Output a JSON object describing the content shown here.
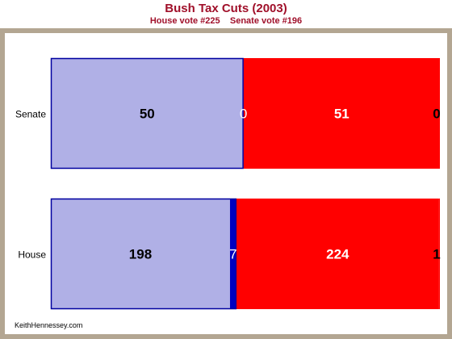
{
  "title": "Bush Tax Cuts (2003)",
  "subtitle": "House vote #225    Senate vote #196",
  "credit": "KeithHennessey.com",
  "colors": {
    "frame": "#b3a692",
    "title": "#a0102a",
    "dem_yes": "#b0b0e6",
    "dem_no": "#0000c0",
    "rep_yes": "#ff0000",
    "rep_no": "#ff0000",
    "outline": "#0000a0"
  },
  "chart_data": {
    "type": "bar",
    "orientation": "horizontal",
    "stacked": true,
    "categories": [
      "Senate",
      "House"
    ],
    "series": [
      {
        "values": [
          50,
          198
        ]
      },
      {
        "values": [
          0,
          7
        ]
      },
      {
        "values": [
          51,
          224
        ]
      },
      {
        "values": [
          0,
          1
        ]
      }
    ],
    "data_labels": [
      [
        "50",
        "0",
        "51",
        "0"
      ],
      [
        "198",
        "7",
        "224",
        "1"
      ]
    ],
    "grid": false,
    "legend": "none"
  }
}
